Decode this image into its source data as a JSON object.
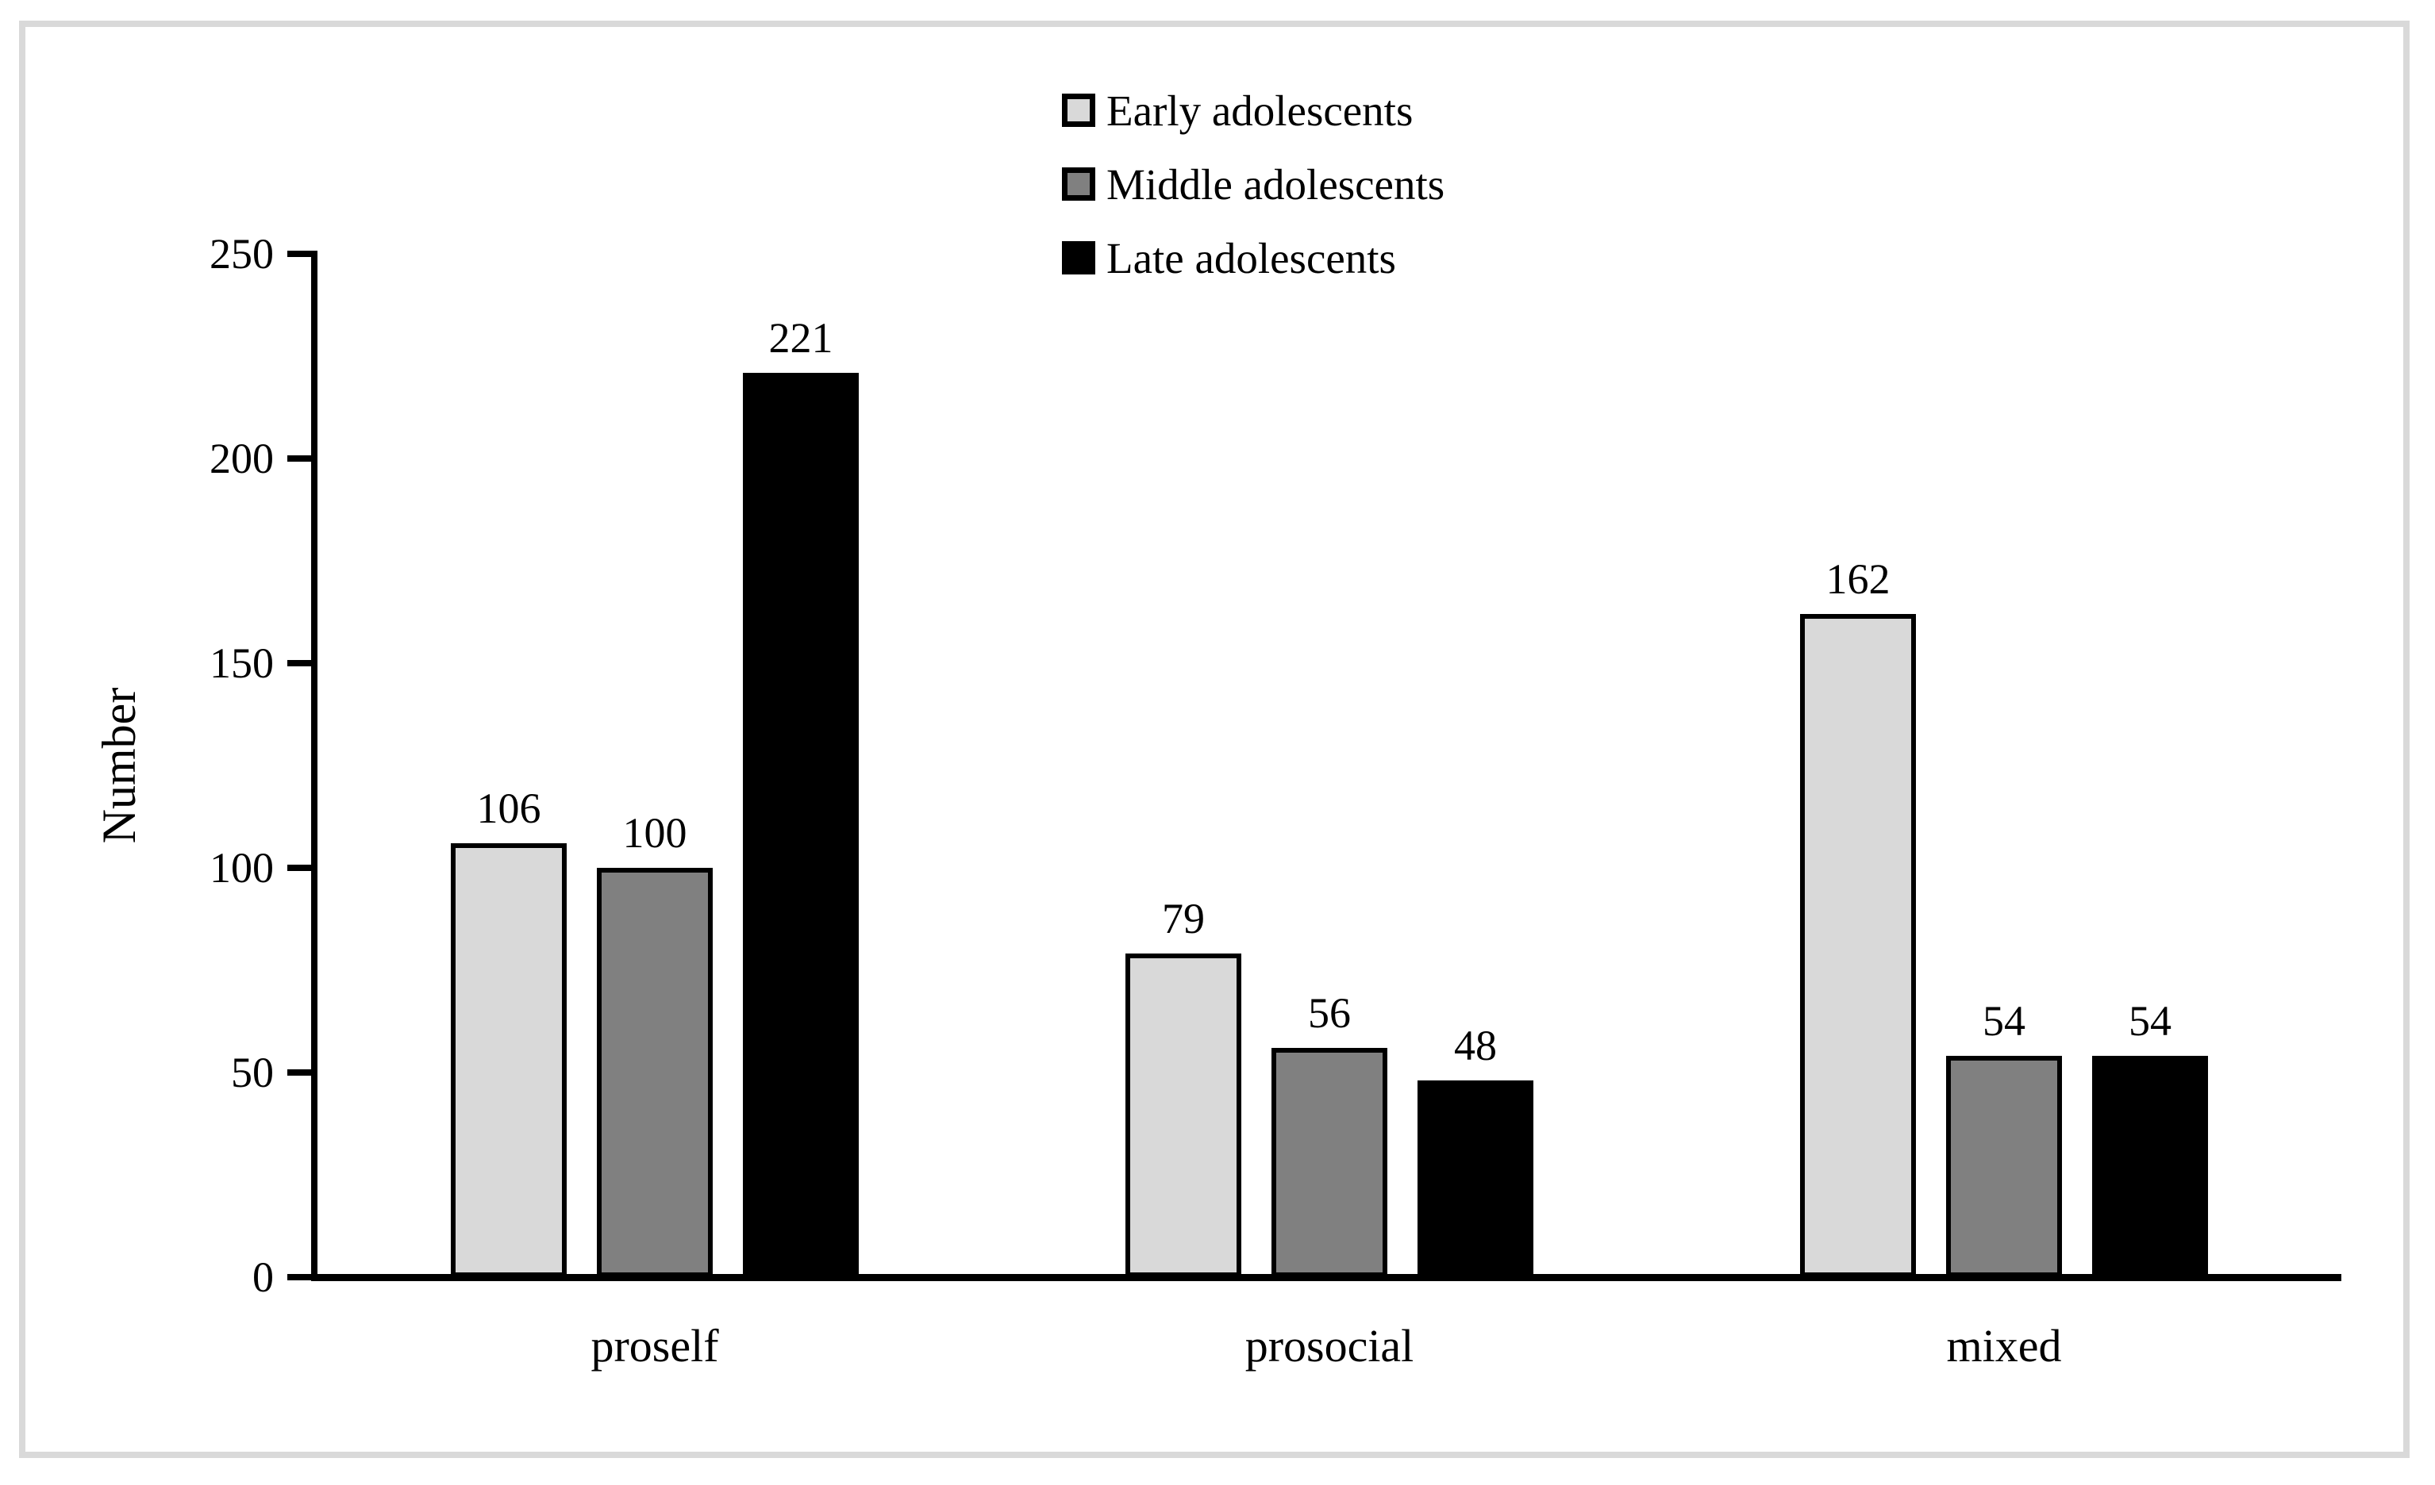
{
  "figure": {
    "background": "#ffffff",
    "frame_color": "#d9d9d9"
  },
  "chart_data": {
    "type": "bar",
    "title": "",
    "categories": [
      "proself",
      "prosocial",
      "mixed"
    ],
    "series": [
      {
        "name": "Early adolescents",
        "color": "#d9d9d9",
        "border_color": "#000000",
        "values": [
          106,
          79,
          162
        ]
      },
      {
        "name": "Middle adolescents",
        "color": "#808080",
        "border_color": "#000000",
        "values": [
          100,
          56,
          54
        ]
      },
      {
        "name": "Late adolescents",
        "color": "#000000",
        "border_color": "#000000",
        "values": [
          221,
          48,
          54
        ]
      }
    ],
    "xlabel": "",
    "ylabel": "Number",
    "ylim": [
      0,
      250
    ],
    "ytick_interval": 50,
    "yticks": [
      0,
      50,
      100,
      150,
      200,
      250
    ],
    "grid": false,
    "legend_position": "top-center",
    "bar_value_labels_shown": true,
    "axis_color": "#000000",
    "text_color": "#000000"
  }
}
